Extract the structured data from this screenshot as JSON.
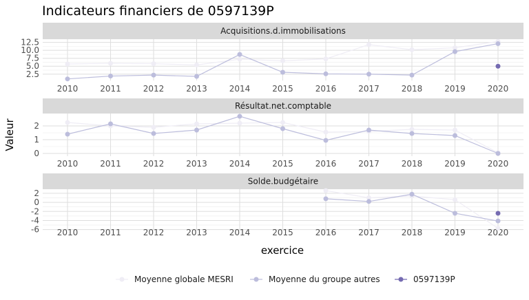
{
  "chart_data": {
    "type": "line",
    "title": "Indicateurs financiers de 0597139P",
    "xlabel": "exercice",
    "ylabel": "Valeur",
    "x": [
      2010,
      2011,
      2012,
      2013,
      2014,
      2015,
      2016,
      2017,
      2018,
      2019,
      2020
    ],
    "series_names": [
      "Moyenne globale MESRI",
      "Moyenne du groupe autres",
      "0597139P"
    ],
    "colors": [
      "#efedf5",
      "#bcbddc",
      "#756bb1"
    ],
    "legend_position": "bottom",
    "grid": true,
    "panels": [
      {
        "name": "Acquisitions.d.immobilisations",
        "ylim": [
          0.5,
          13.5
        ],
        "yticks": [
          2.5,
          5.0,
          7.5,
          10.0,
          12.5
        ],
        "ytick_labels": [
          "2.5",
          "5.0",
          "7.5",
          "10.0",
          "12.5"
        ],
        "series": [
          {
            "values": [
              5.7,
              5.9,
              5.8,
              5.4,
              7.2,
              6.7,
              7.3,
              11.8,
              10.2,
              10.8,
              12.8
            ]
          },
          {
            "values": [
              1.0,
              1.9,
              2.2,
              1.8,
              8.7,
              3.1,
              2.6,
              2.5,
              2.2,
              9.6,
              12.1
            ]
          },
          {
            "values": [
              null,
              null,
              null,
              null,
              null,
              null,
              null,
              null,
              null,
              null,
              5.0
            ]
          }
        ]
      },
      {
        "name": "Résultat.net.comptable",
        "ylim": [
          -0.2,
          2.9
        ],
        "yticks": [
          0,
          1,
          2
        ],
        "ytick_labels": [
          "0",
          "1",
          "2"
        ],
        "series": [
          {
            "values": [
              2.25,
              2.0,
              1.9,
              2.15,
              2.2,
              2.25,
              1.55,
              1.6,
              1.75,
              1.7,
              0.05
            ]
          },
          {
            "values": [
              1.4,
              2.15,
              1.45,
              1.7,
              2.7,
              1.8,
              0.95,
              1.7,
              1.45,
              1.3,
              0.0
            ]
          }
        ]
      },
      {
        "name": "Solde.budgétaire",
        "ylim": [
          -6.2,
          2.9
        ],
        "yticks": [
          -6,
          -4,
          -2,
          0,
          2
        ],
        "ytick_labels": [
          "-6",
          "-4",
          "-2",
          "0",
          "2"
        ],
        "series": [
          {
            "values": [
              null,
              null,
              null,
              null,
              null,
              null,
              2.6,
              1.0,
              1.4,
              0.6,
              -5.7
            ]
          },
          {
            "values": [
              null,
              null,
              null,
              null,
              null,
              null,
              0.8,
              0.2,
              1.8,
              -2.4,
              -4.1
            ]
          },
          {
            "values": [
              null,
              null,
              null,
              null,
              null,
              null,
              null,
              null,
              null,
              null,
              -2.4
            ]
          }
        ]
      }
    ]
  }
}
